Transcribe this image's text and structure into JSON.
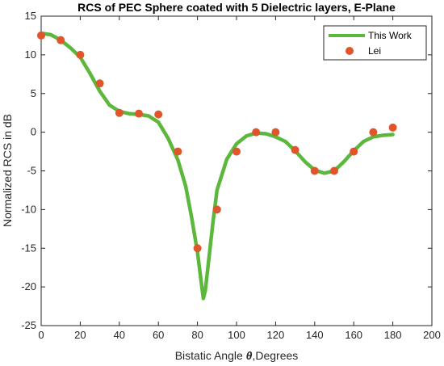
{
  "chart_data": {
    "type": "line",
    "title": "RCS of PEC Sphere coated with 5 Dielectric layers, E-Plane",
    "xlabel_prefix": "Bistatic Angle ",
    "xlabel_symbol": "θ",
    "xlabel_suffix": ",Degrees",
    "ylabel": "Normalized RCS in dB",
    "xlim": [
      0,
      200
    ],
    "ylim": [
      -25,
      15
    ],
    "xticks": [
      0,
      20,
      40,
      60,
      80,
      100,
      120,
      140,
      160,
      180,
      200
    ],
    "yticks": [
      -25,
      -20,
      -15,
      -10,
      -5,
      0,
      5,
      10,
      15
    ],
    "grid": false,
    "legend_position": "top-right",
    "series": [
      {
        "name": "This Work",
        "style": "line",
        "color": "#5cb83c",
        "x": [
          0,
          5,
          10,
          15,
          20,
          25,
          30,
          35,
          40,
          45,
          50,
          55,
          60,
          65,
          70,
          74,
          77,
          80,
          82,
          83,
          84,
          86,
          88,
          90,
          95,
          100,
          105,
          110,
          115,
          120,
          125,
          130,
          135,
          140,
          145,
          150,
          155,
          160,
          165,
          170,
          175,
          180
        ],
        "y": [
          12.8,
          12.6,
          11.9,
          10.9,
          9.7,
          7.6,
          5.3,
          3.5,
          2.7,
          2.4,
          2.3,
          2.1,
          1.3,
          -0.8,
          -3.6,
          -7.0,
          -11.0,
          -15.5,
          -19.5,
          -21.5,
          -20.5,
          -16.0,
          -11.5,
          -7.5,
          -3.5,
          -1.5,
          -0.5,
          -0.1,
          -0.2,
          -0.6,
          -1.2,
          -2.4,
          -3.8,
          -4.9,
          -5.3,
          -5.0,
          -3.8,
          -2.4,
          -1.2,
          -0.6,
          -0.4,
          -0.3
        ]
      },
      {
        "name": "Lei",
        "style": "marker",
        "color": "#e0552a",
        "x": [
          0,
          10,
          20,
          30,
          40,
          50,
          60,
          70,
          80,
          90,
          100,
          110,
          120,
          130,
          140,
          150,
          160,
          170,
          180
        ],
        "y": [
          12.5,
          11.9,
          10.0,
          6.3,
          2.5,
          2.4,
          2.3,
          -2.5,
          -15.0,
          -10.0,
          -2.5,
          0.0,
          0.0,
          -2.3,
          -5.0,
          -5.0,
          -2.5,
          0.0,
          0.6
        ]
      }
    ]
  }
}
